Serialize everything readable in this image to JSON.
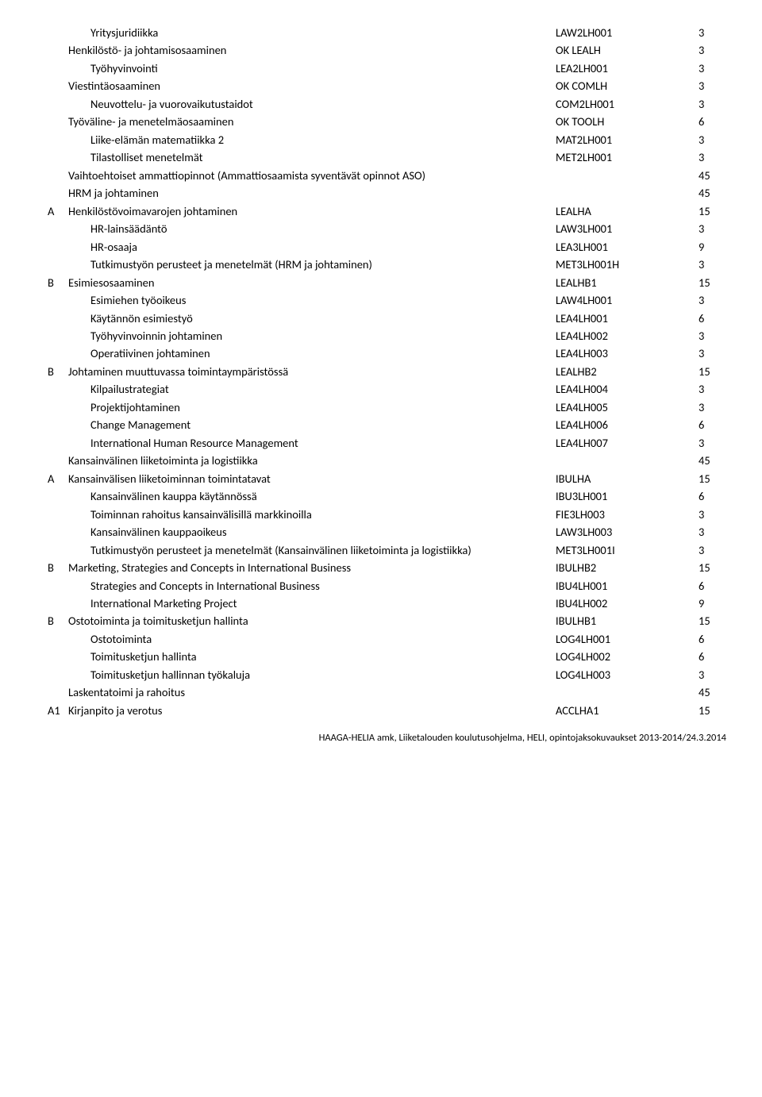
{
  "rows": [
    {
      "prefix": "",
      "label": "Yritysjuridiikka",
      "code": "LAW2LH001",
      "value": "3",
      "indent": 1
    },
    {
      "prefix": "",
      "label": "Henkilöstö- ja johtamisosaaminen",
      "code": "OK LEALH",
      "value": "3",
      "indent": 0
    },
    {
      "prefix": "",
      "label": "Työhyvinvointi",
      "code": "LEA2LH001",
      "value": "3",
      "indent": 1
    },
    {
      "prefix": "",
      "label": "Viestintäosaaminen",
      "code": "OK COMLH",
      "value": "3",
      "indent": 0
    },
    {
      "prefix": "",
      "label": "Neuvottelu- ja vuorovaikutustaidot",
      "code": "COM2LH001",
      "value": "3",
      "indent": 1
    },
    {
      "prefix": "",
      "label": "Työväline- ja menetelmäosaaminen",
      "code": "OK TOOLH",
      "value": "6",
      "indent": 0
    },
    {
      "prefix": "",
      "label": "Liike-elämän matematiikka 2",
      "code": "MAT2LH001",
      "value": "3",
      "indent": 1
    },
    {
      "prefix": "",
      "label": "Tilastolliset menetelmät",
      "code": "MET2LH001",
      "value": "3",
      "indent": 1
    },
    {
      "prefix": "",
      "label": "Vaihtoehtoiset ammattiopinnot (Ammattiosaamista syventävät opinnot ASO)",
      "code": "",
      "value": "45",
      "indent": 0
    },
    {
      "prefix": "",
      "label": "HRM ja johtaminen",
      "code": "",
      "value": "45",
      "indent": 0
    },
    {
      "prefix": "A",
      "label": "Henkilöstövoimavarojen johtaminen",
      "code": "LEALHA",
      "value": "15",
      "indent": 0
    },
    {
      "prefix": "",
      "label": "HR-lainsäädäntö",
      "code": "LAW3LH001",
      "value": "3",
      "indent": 1
    },
    {
      "prefix": "",
      "label": "HR-osaaja",
      "code": "LEA3LH001",
      "value": "9",
      "indent": 1
    },
    {
      "prefix": "",
      "label": "Tutkimustyön perusteet ja menetelmät (HRM ja johtaminen)",
      "code": "MET3LH001H",
      "value": "3",
      "indent": 1
    },
    {
      "prefix": "B",
      "label": "Esimiesosaaminen",
      "code": "LEALHB1",
      "value": "15",
      "indent": 0
    },
    {
      "prefix": "",
      "label": "Esimiehen työoikeus",
      "code": "LAW4LH001",
      "value": "3",
      "indent": 1
    },
    {
      "prefix": "",
      "label": "Käytännön esimiestyö",
      "code": "LEA4LH001",
      "value": "6",
      "indent": 1
    },
    {
      "prefix": "",
      "label": "Työhyvinvoinnin johtaminen",
      "code": "LEA4LH002",
      "value": "3",
      "indent": 1
    },
    {
      "prefix": "",
      "label": "Operatiivinen johtaminen",
      "code": "LEA4LH003",
      "value": "3",
      "indent": 1
    },
    {
      "prefix": "B",
      "label": "Johtaminen muuttuvassa toimintaympäristössä",
      "code": "LEALHB2",
      "value": "15",
      "indent": 0
    },
    {
      "prefix": "",
      "label": "Kilpailustrategiat",
      "code": "LEA4LH004",
      "value": "3",
      "indent": 1
    },
    {
      "prefix": "",
      "label": "Projektijohtaminen",
      "code": "LEA4LH005",
      "value": "3",
      "indent": 1
    },
    {
      "prefix": "",
      "label": "Change Management",
      "code": "LEA4LH006",
      "value": "6",
      "indent": 1
    },
    {
      "prefix": "",
      "label": "International Human Resource Management",
      "code": "LEA4LH007",
      "value": "3",
      "indent": 1
    },
    {
      "prefix": "",
      "label": "Kansainvälinen liiketoiminta ja logistiikka",
      "code": "",
      "value": "45",
      "indent": 0
    },
    {
      "prefix": "A",
      "label": "Kansainvälisen liiketoiminnan toimintatavat",
      "code": "IBULHA",
      "value": "15",
      "indent": 0
    },
    {
      "prefix": "",
      "label": "Kansainvälinen kauppa käytännössä",
      "code": "IBU3LH001",
      "value": "6",
      "indent": 1
    },
    {
      "prefix": "",
      "label": "Toiminnan rahoitus kansainvälisillä markkinoilla",
      "code": "FIE3LH003",
      "value": "3",
      "indent": 1
    },
    {
      "prefix": "",
      "label": "Kansainvälinen kauppaoikeus",
      "code": "LAW3LH003",
      "value": "3",
      "indent": 1
    },
    {
      "prefix": "",
      "label": "Tutkimustyön perusteet ja menetelmät (Kansainvälinen liiketoiminta ja logistiikka)",
      "code": "MET3LH001I",
      "value": "3",
      "indent": 1
    },
    {
      "prefix": "B",
      "label": "Marketing, Strategies and Concepts in International Business",
      "code": "IBULHB2",
      "value": "15",
      "indent": 0
    },
    {
      "prefix": "",
      "label": "Strategies and Concepts in International Business",
      "code": "IBU4LH001",
      "value": "6",
      "indent": 1
    },
    {
      "prefix": "",
      "label": "International Marketing Project",
      "code": "IBU4LH002",
      "value": "9",
      "indent": 1
    },
    {
      "prefix": "B",
      "label": "Ostotoiminta ja toimitusketjun hallinta",
      "code": "IBULHB1",
      "value": "15",
      "indent": 0
    },
    {
      "prefix": "",
      "label": "Ostotoiminta",
      "code": "LOG4LH001",
      "value": "6",
      "indent": 1
    },
    {
      "prefix": "",
      "label": "Toimitusketjun hallinta",
      "code": "LOG4LH002",
      "value": "6",
      "indent": 1
    },
    {
      "prefix": "",
      "label": "Toimitusketjun hallinnan työkaluja",
      "code": "LOG4LH003",
      "value": "3",
      "indent": 1
    },
    {
      "prefix": "",
      "label": "Laskentatoimi ja rahoitus",
      "code": "",
      "value": "45",
      "indent": 0
    },
    {
      "prefix": "A1",
      "label": "Kirjanpito ja verotus",
      "code": "ACCLHA1",
      "value": "15",
      "indent": 0
    }
  ],
  "footer": "HAAGA-HELIA amk, Liiketalouden koulutusohjelma, HELI, opintojaksokuvaukset 2013-2014/24.3.2014"
}
